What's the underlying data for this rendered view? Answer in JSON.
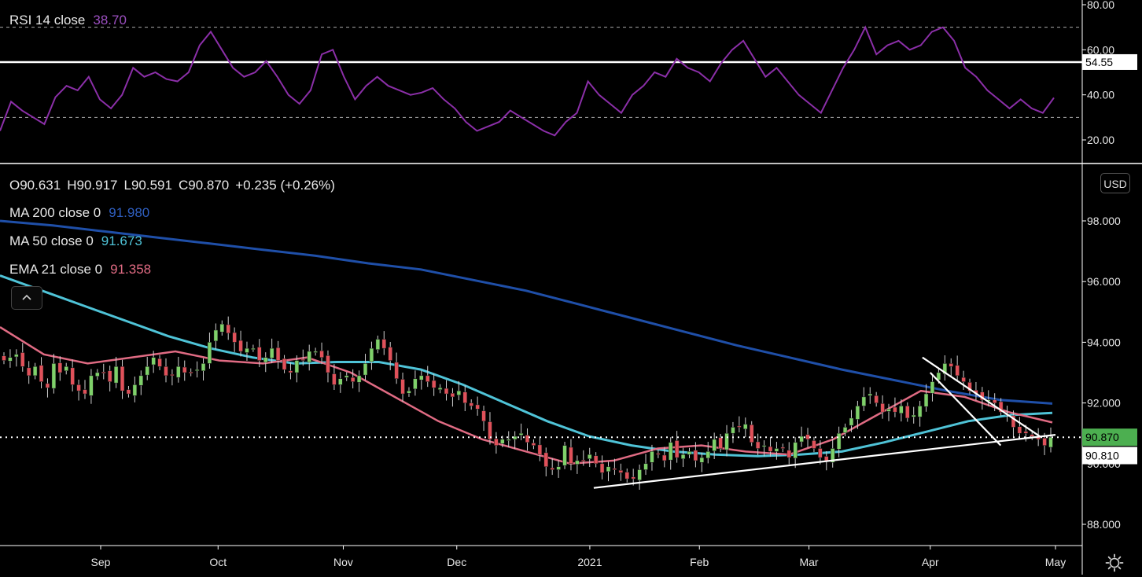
{
  "rsi_panel": {
    "label": "RSI 14 close",
    "value": "38.70",
    "color": "#8b2fa8",
    "upper_band": 70,
    "lower_band": 30,
    "hline_value": 54.55,
    "hline_label": "54.55",
    "axis_ticks": [
      "80.00",
      "60.00",
      "40.00",
      "20.00"
    ]
  },
  "ohlc": {
    "open": "O90.631",
    "high": "H90.917",
    "low": "L90.591",
    "close": "C90.870",
    "change": "+0.235 (+0.26%)"
  },
  "indicators": [
    {
      "label": "MA 200 close 0",
      "value": "91.980",
      "color": "#1f4fa8"
    },
    {
      "label": "MA 50 close 0",
      "value": "91.673",
      "color": "#4fc3d7"
    },
    {
      "label": "EMA 21 close 0",
      "value": "91.358",
      "color": "#e06b83"
    }
  ],
  "currency_button": "USD",
  "collapse_icon": "chevron-up-icon",
  "settings_icon": "gear-icon",
  "price_axis": {
    "ticks": [
      "98.000",
      "96.000",
      "94.000",
      "92.000",
      "90.000",
      "88.000"
    ],
    "last_price_label": "90.870",
    "last_price_color": "#4caf50",
    "crosshair_label": "90.810"
  },
  "time_axis": [
    "Sep",
    "Oct",
    "Nov",
    "Dec",
    "2021",
    "Feb",
    "Mar",
    "Apr",
    "May"
  ],
  "colors": {
    "up": "#7fd16a",
    "down": "#e0515a",
    "line": "#ffffff"
  },
  "chart_data": {
    "type": "candlestick",
    "xlabel": "",
    "ylabel": "",
    "price_ylim": [
      87.5,
      99.5
    ],
    "rsi_ylim": [
      12,
      83
    ],
    "period": "2020-08-13 to 2021-04-30, daily",
    "month_starts": [
      "2020-09-01",
      "2020-10-01",
      "2020-11-02",
      "2020-12-01",
      "2021-01-04",
      "2021-02-01",
      "2021-03-01",
      "2021-04-01",
      "2021-05-03"
    ],
    "close": [
      93.4,
      93.5,
      93.6,
      93.2,
      92.9,
      93.2,
      92.7,
      92.5,
      93.3,
      93.0,
      93.2,
      92.6,
      92.4,
      92.3,
      92.9,
      93.0,
      93.0,
      92.7,
      93.2,
      92.4,
      92.3,
      92.6,
      92.9,
      93.2,
      93.5,
      93.2,
      92.9,
      92.9,
      93.2,
      93.0,
      93.0,
      93.1,
      93.3,
      94.0,
      94.4,
      94.6,
      94.3,
      94.0,
      93.7,
      93.8,
      93.8,
      93.4,
      93.5,
      93.8,
      93.4,
      93.1,
      93.0,
      93.4,
      93.4,
      93.7,
      93.7,
      93.5,
      93.0,
      92.6,
      92.8,
      92.9,
      92.7,
      92.9,
      93.3,
      93.8,
      94.1,
      93.8,
      93.4,
      92.8,
      92.3,
      92.4,
      92.8,
      92.9,
      92.7,
      92.5,
      92.5,
      92.3,
      92.2,
      92.4,
      92.0,
      91.9,
      91.8,
      91.4,
      90.8,
      90.6,
      90.8,
      90.8,
      90.9,
      91.0,
      90.7,
      90.6,
      90.3,
      89.9,
      89.8,
      89.9,
      90.6,
      90.0,
      90.1,
      90.1,
      90.3,
      90.0,
      89.7,
      89.9,
      89.8,
      89.7,
      89.5,
      89.5,
      89.8,
      90.0,
      90.4,
      90.3,
      90.1,
      90.7,
      90.2,
      90.3,
      90.4,
      90.1,
      90.2,
      90.4,
      90.8,
      90.5,
      91.0,
      91.2,
      91.2,
      91.3,
      90.7,
      90.5,
      90.6,
      90.4,
      90.5,
      90.5,
      90.2,
      90.7,
      90.9,
      90.8,
      90.5,
      90.2,
      90.1,
      90.5,
      91.0,
      91.2,
      91.5,
      91.9,
      92.2,
      92.3,
      92.0,
      91.7,
      91.8,
      91.7,
      91.9,
      91.5,
      91.6,
      91.9,
      92.3,
      92.7,
      93.0,
      93.3,
      93.2,
      92.9,
      92.7,
      92.4,
      92.3,
      92.1,
      92.1,
      92.0,
      91.7,
      91.6,
      91.2,
      91.0,
      91.0,
      90.9,
      90.8,
      90.6,
      90.87
    ],
    "ma200": [
      98.0,
      97.85,
      97.65,
      97.45,
      97.25,
      97.05,
      96.85,
      96.6,
      96.4,
      96.05,
      95.7,
      95.25,
      94.8,
      94.35,
      93.9,
      93.5,
      93.1,
      92.75,
      92.4,
      92.1,
      91.98
    ],
    "ma50": [
      96.2,
      95.7,
      95.2,
      94.7,
      94.2,
      93.8,
      93.5,
      93.3,
      93.35,
      93.35,
      93.1,
      92.6,
      92.0,
      91.4,
      90.9,
      90.6,
      90.4,
      90.3,
      90.25,
      90.3,
      90.4,
      90.7,
      91.05,
      91.4,
      91.6,
      91.673
    ],
    "ema21": [
      94.5,
      93.6,
      93.3,
      93.5,
      93.7,
      93.4,
      93.3,
      93.5,
      93.0,
      92.2,
      91.4,
      90.8,
      90.4,
      90.0,
      90.1,
      90.5,
      90.6,
      90.4,
      90.3,
      90.8,
      91.6,
      92.4,
      92.2,
      91.7,
      91.358
    ],
    "rsi": [
      24,
      37,
      33,
      30,
      27,
      39,
      44,
      42,
      48,
      38,
      34,
      40,
      52,
      48,
      50,
      47,
      46,
      50,
      62,
      68,
      60,
      52,
      48,
      50,
      55,
      48,
      40,
      36,
      42,
      58,
      60,
      48,
      38,
      44,
      48,
      44,
      42,
      40,
      41,
      43,
      38,
      34,
      28,
      24,
      26,
      28,
      33,
      30,
      27,
      24,
      22,
      28,
      32,
      46,
      40,
      36,
      32,
      40,
      44,
      50,
      48,
      56,
      52,
      50,
      46,
      54,
      60,
      64,
      56,
      48,
      52,
      46,
      40,
      36,
      32,
      42,
      52,
      60,
      70,
      58,
      62,
      64,
      60,
      62,
      68,
      70,
      64,
      52,
      48,
      42,
      38,
      34,
      38,
      34,
      32,
      38.7
    ],
    "annotations": [
      {
        "kind": "trendline",
        "from": [
          "2021-01-05",
          89.2
        ],
        "to": [
          "2021-05-03",
          90.95
        ]
      },
      {
        "kind": "trendline",
        "from": [
          "2021-03-30",
          93.5
        ],
        "to": [
          "2021-04-29",
          90.9
        ]
      },
      {
        "kind": "trendline",
        "from": [
          "2021-04-01",
          93.0
        ],
        "to": [
          "2021-04-19",
          90.6
        ]
      }
    ]
  }
}
